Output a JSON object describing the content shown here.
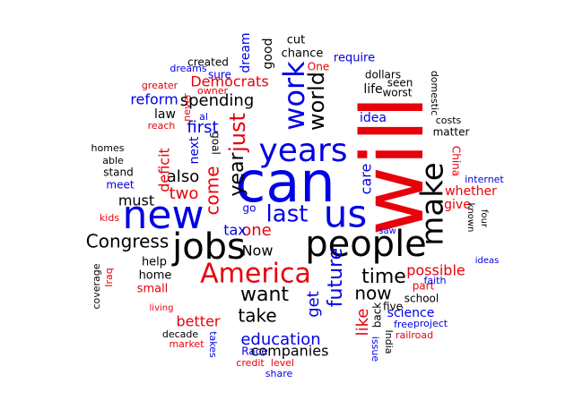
{
  "colors": {
    "black": "#000000",
    "red": "#e8000b",
    "blue": "#0000e8"
  },
  "words": [
    {
      "text": "will",
      "color": "red"
    },
    {
      "text": "can",
      "color": "blue"
    },
    {
      "text": "people",
      "color": "black"
    },
    {
      "text": "new",
      "color": "blue"
    },
    {
      "text": "us",
      "color": "blue"
    },
    {
      "text": "jobs",
      "color": "black"
    },
    {
      "text": "years",
      "color": "blue"
    },
    {
      "text": "make",
      "color": "black"
    },
    {
      "text": "work",
      "color": "blue"
    },
    {
      "text": "America",
      "color": "red"
    },
    {
      "text": "last",
      "color": "blue"
    },
    {
      "text": "year",
      "color": "black"
    },
    {
      "text": "just",
      "color": "red"
    },
    {
      "text": "future",
      "color": "blue"
    },
    {
      "text": "world",
      "color": "black"
    },
    {
      "text": "want",
      "color": "black"
    },
    {
      "text": "time",
      "color": "black"
    },
    {
      "text": "now",
      "color": "black"
    },
    {
      "text": "Congress",
      "color": "black"
    },
    {
      "text": "come",
      "color": "red"
    },
    {
      "text": "take",
      "color": "black"
    },
    {
      "text": "spending",
      "color": "black"
    },
    {
      "text": "education",
      "color": "blue"
    },
    {
      "text": "Democrats",
      "color": "red"
    },
    {
      "text": "one",
      "color": "red"
    },
    {
      "text": "like",
      "color": "red"
    },
    {
      "text": "first",
      "color": "blue"
    },
    {
      "text": "two",
      "color": "red"
    },
    {
      "text": "companies",
      "color": "black"
    },
    {
      "text": "also",
      "color": "black"
    },
    {
      "text": "get",
      "color": "blue"
    },
    {
      "text": "better",
      "color": "red"
    },
    {
      "text": "reform",
      "color": "blue"
    },
    {
      "text": "Now",
      "color": "black"
    },
    {
      "text": "must",
      "color": "black"
    },
    {
      "text": "tax",
      "color": "blue"
    },
    {
      "text": "possible",
      "color": "red"
    },
    {
      "text": "care",
      "color": "blue"
    },
    {
      "text": "whether",
      "color": "red"
    },
    {
      "text": "science",
      "color": "blue"
    },
    {
      "text": "law",
      "color": "black"
    },
    {
      "text": "deficit",
      "color": "red"
    },
    {
      "text": "next",
      "color": "blue"
    },
    {
      "text": "life",
      "color": "black"
    },
    {
      "text": "idea",
      "color": "blue"
    },
    {
      "text": "dream",
      "color": "blue"
    },
    {
      "text": "good",
      "color": "black"
    },
    {
      "text": "cut",
      "color": "black"
    },
    {
      "text": "chance",
      "color": "black"
    },
    {
      "text": "require",
      "color": "blue"
    },
    {
      "text": "created",
      "color": "black"
    },
    {
      "text": "sure",
      "color": "blue"
    },
    {
      "text": "dreams",
      "color": "blue"
    },
    {
      "text": "dollars",
      "color": "black"
    },
    {
      "text": "seen",
      "color": "black"
    },
    {
      "text": "worst",
      "color": "black"
    },
    {
      "text": "One",
      "color": "red"
    },
    {
      "text": "greater",
      "color": "red"
    },
    {
      "text": "owner",
      "color": "red"
    },
    {
      "text": "domestic",
      "color": "black"
    },
    {
      "text": "al",
      "color": "blue"
    },
    {
      "text": "never",
      "color": "red"
    },
    {
      "text": "reach",
      "color": "red"
    },
    {
      "text": "goal",
      "color": "black"
    },
    {
      "text": "costs",
      "color": "black"
    },
    {
      "text": "matter",
      "color": "black"
    },
    {
      "text": "homes",
      "color": "black"
    },
    {
      "text": "able",
      "color": "black"
    },
    {
      "text": "stand",
      "color": "black"
    },
    {
      "text": "meet",
      "color": "blue"
    },
    {
      "text": "China",
      "color": "red"
    },
    {
      "text": "internet",
      "color": "blue"
    },
    {
      "text": "give",
      "color": "red"
    },
    {
      "text": "known",
      "color": "black"
    },
    {
      "text": "four",
      "color": "black"
    },
    {
      "text": "go",
      "color": "blue"
    },
    {
      "text": "kids",
      "color": "red"
    },
    {
      "text": "saw",
      "color": "blue"
    },
    {
      "text": "help",
      "color": "black"
    },
    {
      "text": "home",
      "color": "black"
    },
    {
      "text": "small",
      "color": "red"
    },
    {
      "text": "Iraq",
      "color": "red"
    },
    {
      "text": "coverage",
      "color": "black"
    },
    {
      "text": "ideas",
      "color": "blue"
    },
    {
      "text": "part",
      "color": "red"
    },
    {
      "text": "faith",
      "color": "blue"
    },
    {
      "text": "school",
      "color": "black"
    },
    {
      "text": "five",
      "color": "black"
    },
    {
      "text": "back",
      "color": "black"
    },
    {
      "text": "living",
      "color": "red"
    },
    {
      "text": "free",
      "color": "blue"
    },
    {
      "text": "project",
      "color": "blue"
    },
    {
      "text": "railroad",
      "color": "red"
    },
    {
      "text": "decade",
      "color": "black"
    },
    {
      "text": "market",
      "color": "red"
    },
    {
      "text": "takes",
      "color": "blue"
    },
    {
      "text": "Race",
      "color": "blue"
    },
    {
      "text": "credit",
      "color": "red"
    },
    {
      "text": "level",
      "color": "red"
    },
    {
      "text": "share",
      "color": "blue"
    },
    {
      "text": "issue",
      "color": "blue"
    },
    {
      "text": "India",
      "color": "black"
    }
  ]
}
